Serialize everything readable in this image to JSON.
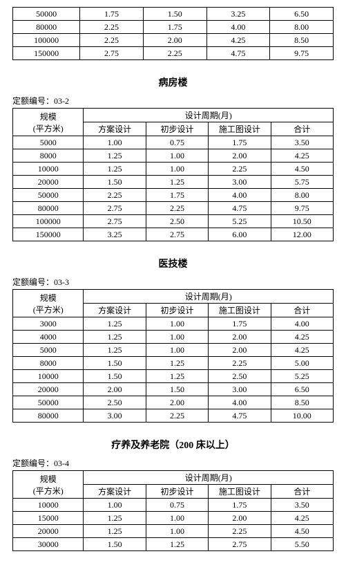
{
  "labels": {
    "code_prefix": "定额编号：",
    "scale_header1": "规模",
    "scale_header2": "(平方米)",
    "period_header": "设计周期(月)",
    "col1": "方案设计",
    "col2": "初步设计",
    "col3": "施工图设计",
    "col4": "合计"
  },
  "table0": {
    "rows": [
      [
        "50000",
        "1.75",
        "1.50",
        "3.25",
        "6.50"
      ],
      [
        "80000",
        "2.25",
        "1.75",
        "4.00",
        "8.00"
      ],
      [
        "100000",
        "2.25",
        "2.00",
        "4.25",
        "8.50"
      ],
      [
        "150000",
        "2.75",
        "2.25",
        "4.75",
        "9.75"
      ]
    ]
  },
  "sections": [
    {
      "title": "病房楼",
      "code": "03-2",
      "rows": [
        [
          "5000",
          "1.00",
          "0.75",
          "1.75",
          "3.50"
        ],
        [
          "8000",
          "1.25",
          "1.00",
          "2.00",
          "4.25"
        ],
        [
          "10000",
          "1.25",
          "1.00",
          "2.25",
          "4.50"
        ],
        [
          "20000",
          "1.50",
          "1.25",
          "3.00",
          "5.75"
        ],
        [
          "50000",
          "2.25",
          "1.75",
          "4.00",
          "8.00"
        ],
        [
          "80000",
          "2.75",
          "2.25",
          "4.75",
          "9.75"
        ],
        [
          "100000",
          "2.75",
          "2.50",
          "5.25",
          "10.50"
        ],
        [
          "150000",
          "3.25",
          "2.75",
          "6.00",
          "12.00"
        ]
      ]
    },
    {
      "title": "医技楼",
      "code": "03-3",
      "rows": [
        [
          "3000",
          "1.25",
          "1.00",
          "1.75",
          "4.00"
        ],
        [
          "4000",
          "1.25",
          "1.00",
          "2.00",
          "4.25"
        ],
        [
          "5000",
          "1.25",
          "1.00",
          "2.00",
          "4.25"
        ],
        [
          "8000",
          "1.50",
          "1.25",
          "2.25",
          "5.00"
        ],
        [
          "10000",
          "1.50",
          "1.25",
          "2.50",
          "5.25"
        ],
        [
          "20000",
          "2.00",
          "1.50",
          "3.00",
          "6.50"
        ],
        [
          "50000",
          "2.50",
          "2.00",
          "4.00",
          "8.50"
        ],
        [
          "80000",
          "3.00",
          "2.25",
          "4.75",
          "10.00"
        ]
      ]
    },
    {
      "title": "疗养及养老院（200 床以上）",
      "code": "03-4",
      "rows": [
        [
          "10000",
          "1.00",
          "0.75",
          "1.75",
          "3.50"
        ],
        [
          "15000",
          "1.25",
          "1.00",
          "2.00",
          "4.25"
        ],
        [
          "20000",
          "1.25",
          "1.00",
          "2.25",
          "4.50"
        ],
        [
          "30000",
          "1.50",
          "1.25",
          "2.75",
          "5.50"
        ]
      ]
    }
  ]
}
